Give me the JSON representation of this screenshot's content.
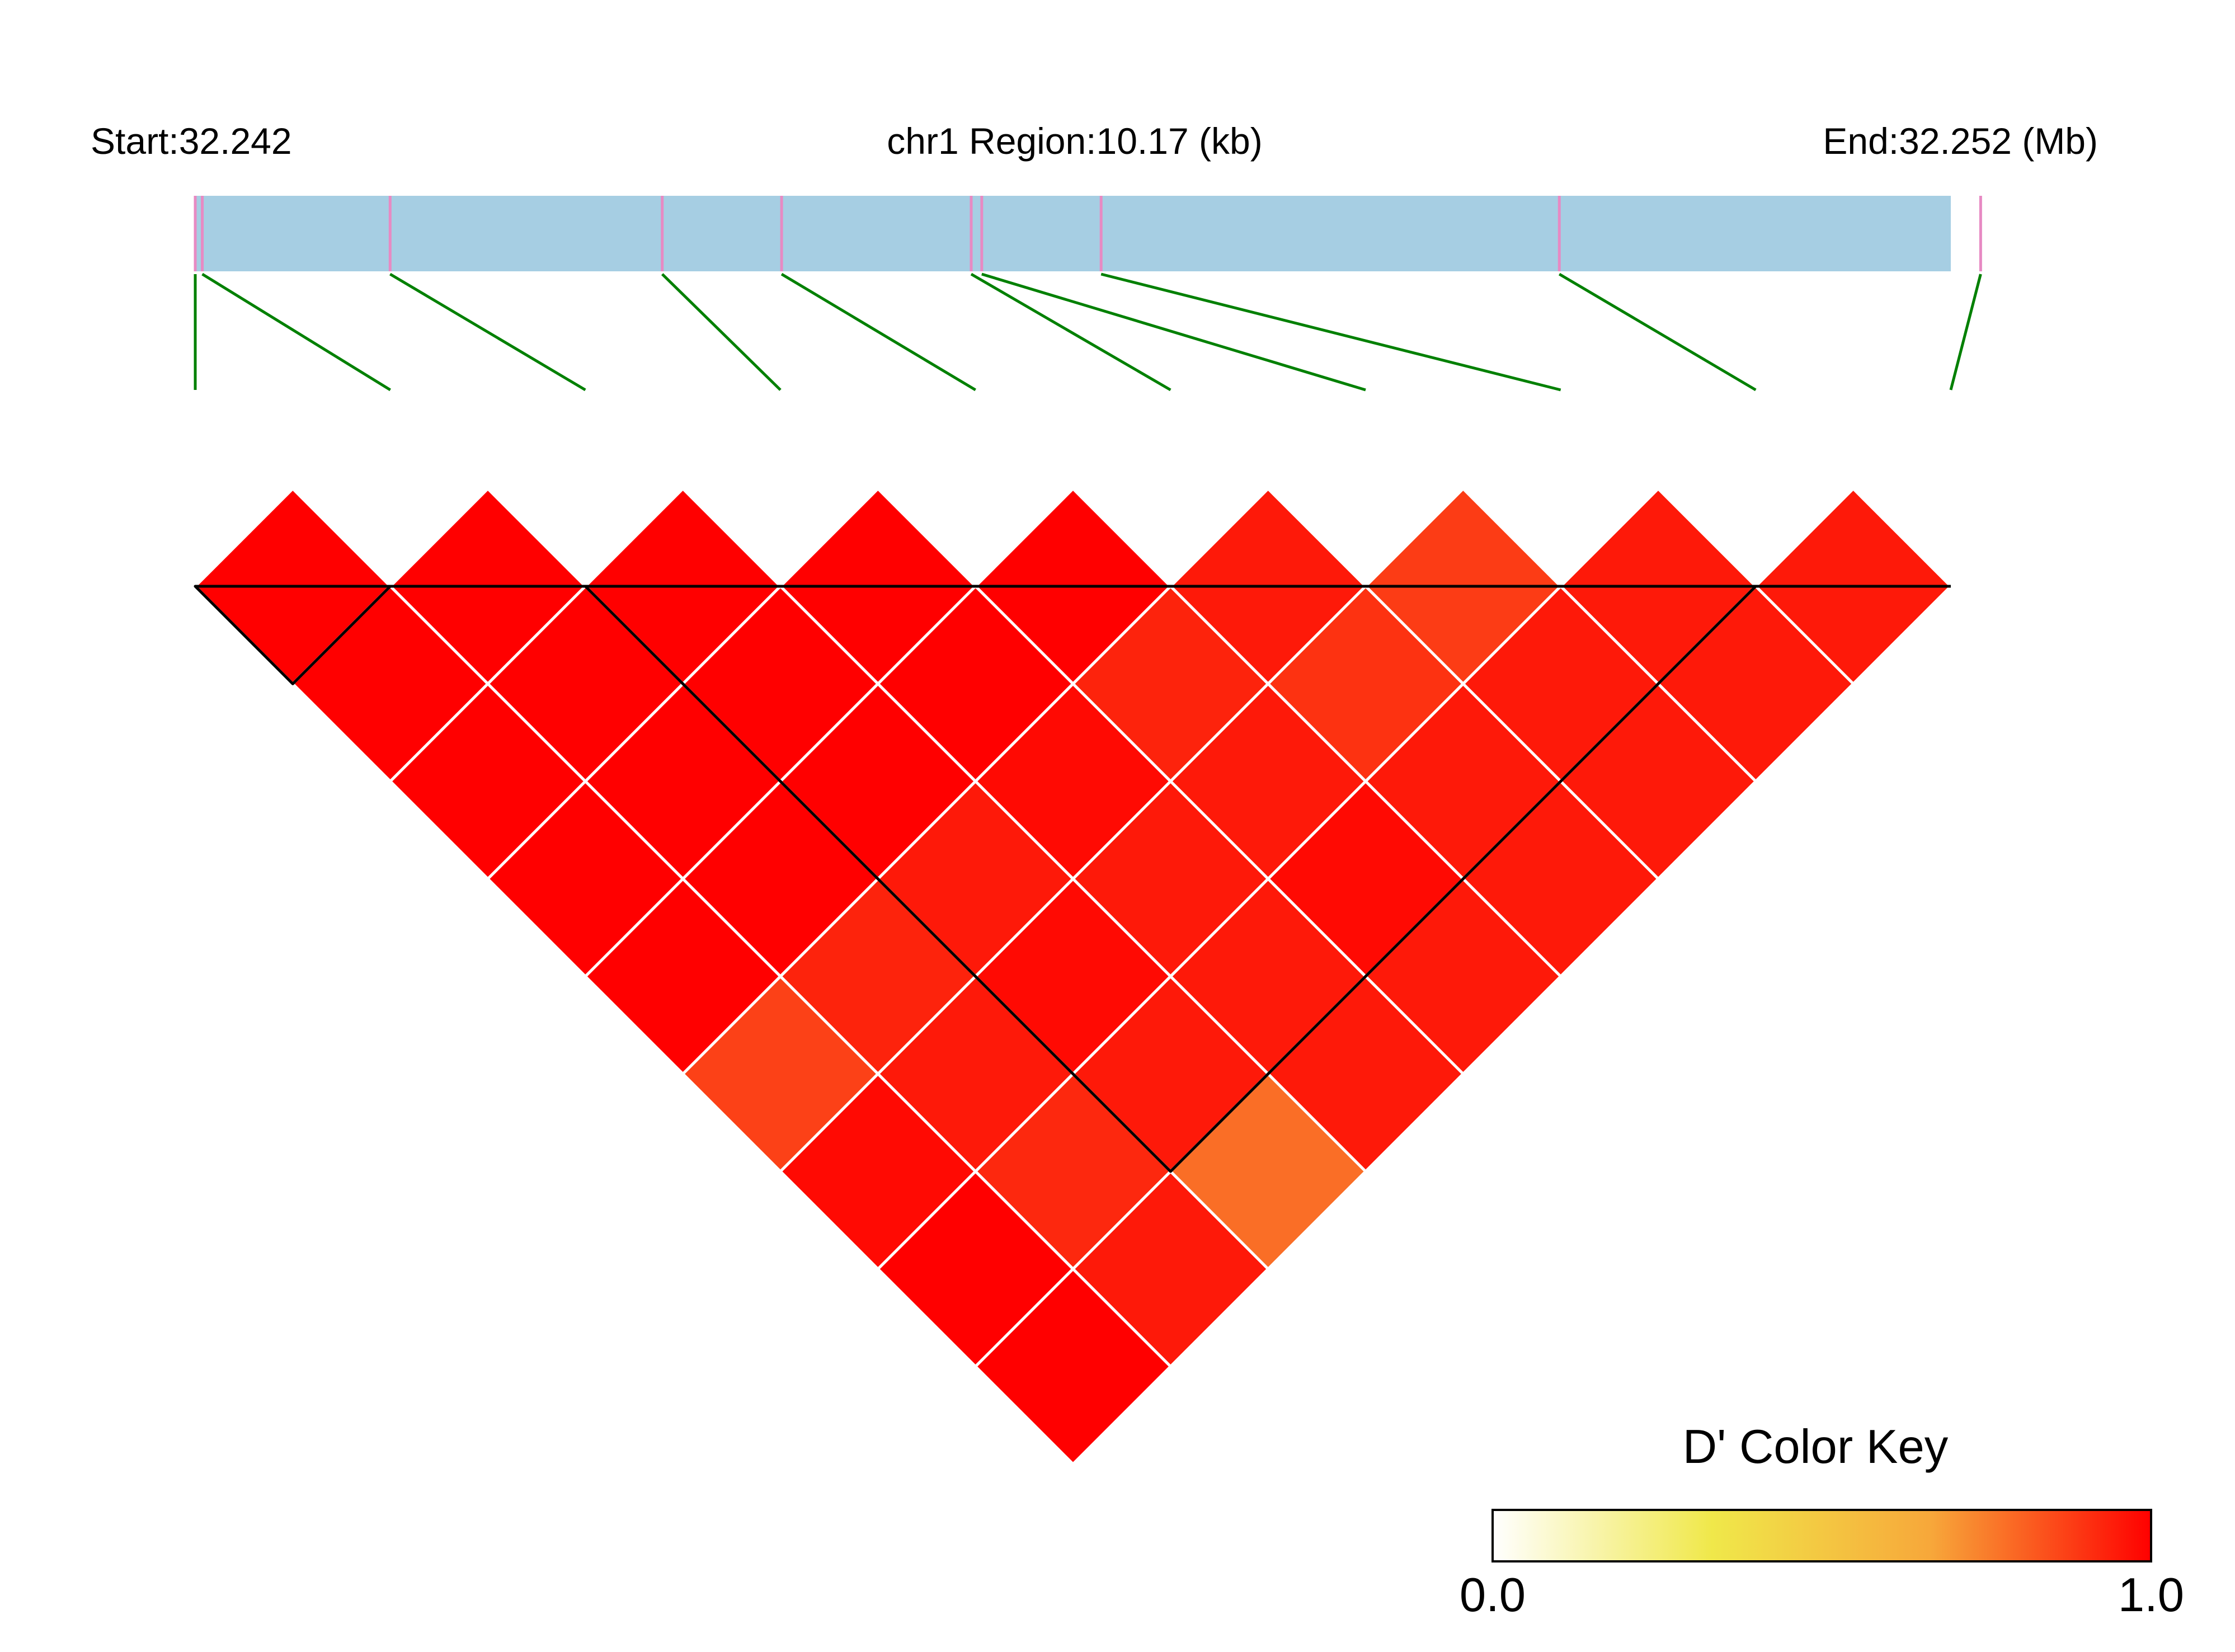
{
  "chart_data": {
    "type": "heatmap",
    "subtype": "ld-triangle",
    "header": {
      "start_label": "Start:32.242",
      "region_label": "chr1 Region:10.17 (kb)",
      "end_label": "End:32.252 (Mb)"
    },
    "region_mb": [
      32.242,
      32.252
    ],
    "snp_positions_mb": [
      32.242,
      32.24204,
      32.24311,
      32.24466,
      32.24534,
      32.24642,
      32.24648,
      32.24716,
      32.24977,
      32.25217
    ],
    "color_key": {
      "title": "D' Color Key",
      "min_label": "0.0",
      "max_label": "1.0",
      "min": 0.0,
      "max": 1.0,
      "colors": [
        "#ffffff",
        "#f0e84a",
        "#f7a73a",
        "#ff0000"
      ]
    },
    "d_prime_matrix": [
      [
        1.0,
        1.0,
        1.0,
        1.0,
        1.0,
        0.95,
        0.88,
        0.95,
        0.95
      ],
      [
        1.0,
        1.0,
        1.0,
        1.0,
        0.93,
        0.9,
        0.95,
        0.95
      ],
      [
        1.0,
        1.0,
        1.0,
        0.98,
        0.95,
        0.95,
        0.95
      ],
      [
        1.0,
        1.0,
        0.95,
        0.95,
        0.98,
        0.95
      ],
      [
        1.0,
        0.93,
        0.98,
        0.95,
        0.95
      ],
      [
        0.87,
        0.95,
        0.95,
        0.95
      ],
      [
        0.98,
        0.92,
        0.78
      ],
      [
        1.0,
        0.95
      ],
      [
        1.0
      ]
    ],
    "blocks": [
      [
        1,
        2
      ],
      [
        3,
        9
      ]
    ],
    "colors": {
      "gene_bar": "#a6cee3",
      "snp_tick": "#e78ac3",
      "connector": "#008000",
      "cell_border": "#ffffff",
      "block_outline": "#000000"
    }
  }
}
